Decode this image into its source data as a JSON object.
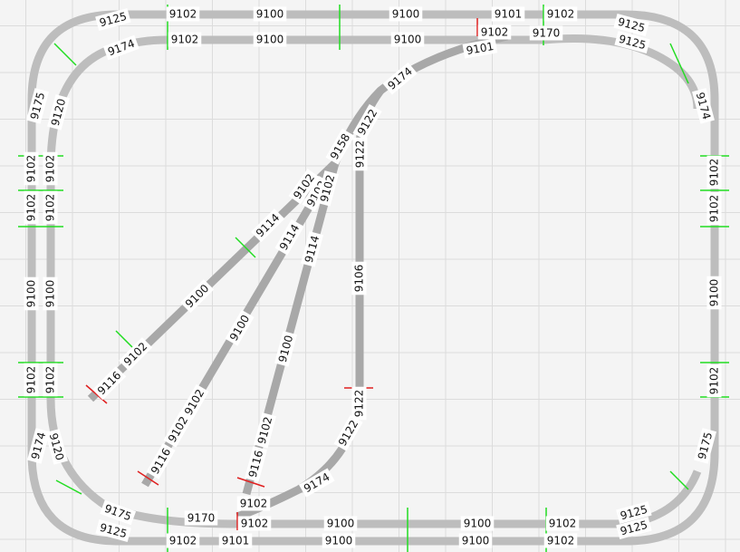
{
  "labels": [
    "9125",
    "9102",
    "9100",
    "9100",
    "9101",
    "9102",
    "9125",
    "9174",
    "9102",
    "9100",
    "9100",
    "9102",
    "9101",
    "9170",
    "9125",
    "9175",
    "9102",
    "9102",
    "9100",
    "9102",
    "9174",
    "9120",
    "9102",
    "9102",
    "9100",
    "9102",
    "9120",
    "9174",
    "9102",
    "9102",
    "9100",
    "9102",
    "9175",
    "9125",
    "9102",
    "9101",
    "9100",
    "9100",
    "9102",
    "9125",
    "9175",
    "9170",
    "9102",
    "9102",
    "9100",
    "9100",
    "9102",
    "9125",
    "9174",
    "9122",
    "9122",
    "9158",
    "9102",
    "9102",
    "9102",
    "9114",
    "9114",
    "9114",
    "9106",
    "9100",
    "9100",
    "9100",
    "9102",
    "9116",
    "9102",
    "9102",
    "9116",
    "9102",
    "9116",
    "9122",
    "9122",
    "9174"
  ]
}
